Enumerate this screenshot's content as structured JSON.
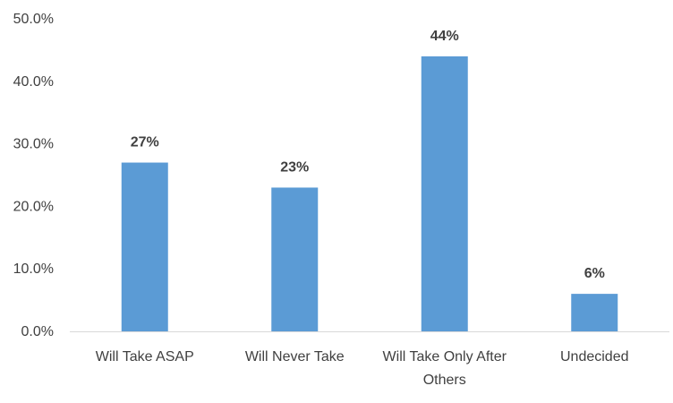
{
  "chart_data": {
    "type": "bar",
    "categories": [
      [
        "Will Take ASAP"
      ],
      [
        "Will Never Take"
      ],
      [
        "Will Take Only After",
        "Others"
      ],
      [
        "Undecided"
      ]
    ],
    "values": [
      27,
      23,
      44,
      6
    ],
    "data_labels": [
      "27%",
      "23%",
      "44%",
      "6%"
    ],
    "y_ticks": [
      0,
      10,
      20,
      30,
      40,
      50
    ],
    "y_tick_labels": [
      "0.0%",
      "10.0%",
      "20.0%",
      "30.0%",
      "40.0%",
      "50.0%"
    ],
    "ylim": [
      0,
      50
    ],
    "grid": false,
    "legend": "none",
    "title": "",
    "xlabel": "",
    "ylabel": ""
  },
  "colors": {
    "bar": "#5b9bd5",
    "axis": "#d9d9d9",
    "text": "#404040"
  }
}
